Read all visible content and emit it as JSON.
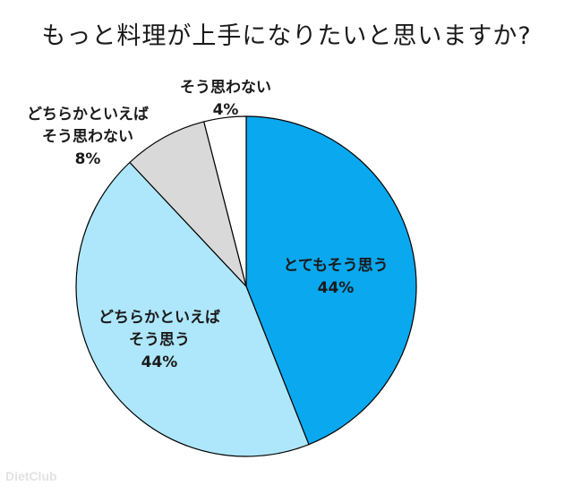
{
  "chart_data": {
    "type": "pie",
    "title": "もっと料理が上手になりたいと思いますか?",
    "slices": [
      {
        "label": [
          "とてもそう思う"
        ],
        "value": 44,
        "value_label": "44%",
        "color": "#0aa8ee"
      },
      {
        "label": [
          "どちらかといえば",
          "そう思う"
        ],
        "value": 44,
        "value_label": "44%",
        "color": "#aee7fb"
      },
      {
        "label": [
          "どちらかといえば",
          "そう思わない"
        ],
        "value": 8,
        "value_label": "8%",
        "color": "#d9d9d9"
      },
      {
        "label": [
          "そう思わない"
        ],
        "value": 4,
        "value_label": "4%",
        "color": "#ffffff"
      }
    ]
  },
  "watermark": "DietClub"
}
